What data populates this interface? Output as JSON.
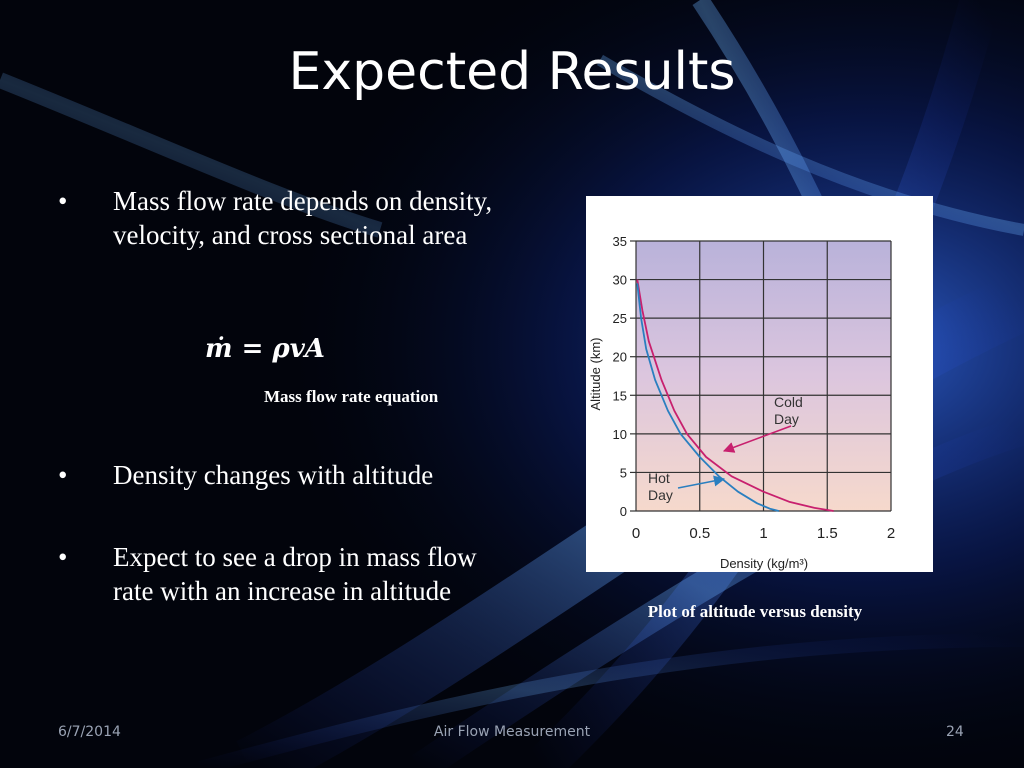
{
  "slide": {
    "title": "Expected Results",
    "bullets": [
      {
        "symbol": "•",
        "text": "Mass flow rate depends on density, velocity, and cross sectional area"
      },
      {
        "symbol": "•",
        "text": "Density changes with altitude"
      },
      {
        "symbol": "•",
        "text": "Expect to see a drop in mass flow rate with an increase in altitude"
      }
    ],
    "equation": "ṁ = ρvA",
    "equation_caption": "Mass flow rate equation",
    "chart_caption": "Plot of altitude versus density"
  },
  "footer": {
    "date": "6/7/2014",
    "center": "Air Flow Measurement",
    "page": "24"
  },
  "colors": {
    "cold_day": "#c8206e",
    "hot_day": "#2a7fc0"
  },
  "chart_data": {
    "type": "line",
    "xlabel": "Density (kg/m³)",
    "ylabel": "Altitude (km)",
    "xlim": [
      0,
      2
    ],
    "ylim": [
      0,
      35
    ],
    "x_ticks": [
      "0",
      "0.5",
      "1",
      "1.5",
      "2"
    ],
    "y_ticks": [
      "0",
      "5",
      "10",
      "15",
      "20",
      "25",
      "30",
      "35"
    ],
    "grid": true,
    "series": [
      {
        "name": "Cold Day",
        "label_lines": [
          "Cold",
          "Day"
        ],
        "color": "#c8206e",
        "points": [
          [
            0.01,
            30
          ],
          [
            0.05,
            26
          ],
          [
            0.1,
            22
          ],
          [
            0.2,
            17
          ],
          [
            0.3,
            13
          ],
          [
            0.4,
            10
          ],
          [
            0.55,
            7
          ],
          [
            0.75,
            4.5
          ],
          [
            1.0,
            2.5
          ],
          [
            1.2,
            1.2
          ],
          [
            1.4,
            0.4
          ],
          [
            1.55,
            0
          ]
        ]
      },
      {
        "name": "Hot Day",
        "label_lines": [
          "Hot",
          "Day"
        ],
        "color": "#2a7fc0",
        "points": [
          [
            0.01,
            29.5
          ],
          [
            0.04,
            25
          ],
          [
            0.08,
            21
          ],
          [
            0.15,
            17
          ],
          [
            0.25,
            13
          ],
          [
            0.35,
            10
          ],
          [
            0.5,
            7
          ],
          [
            0.65,
            4.5
          ],
          [
            0.8,
            2.5
          ],
          [
            0.95,
            1
          ],
          [
            1.05,
            0.3
          ],
          [
            1.12,
            0
          ]
        ]
      }
    ]
  }
}
